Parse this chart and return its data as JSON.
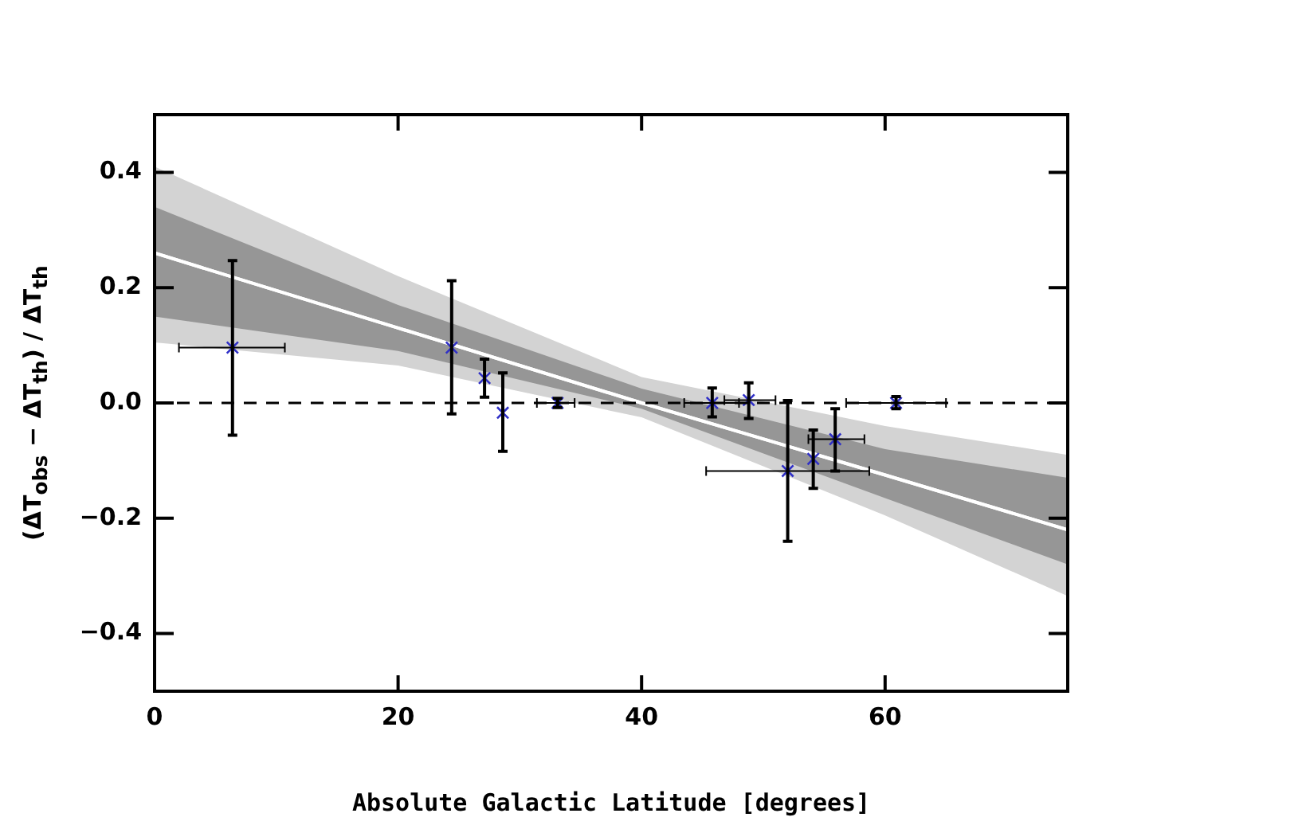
{
  "chart_data": {
    "type": "scatter",
    "xlabel": "Absolute Galactic Latitude [degrees]",
    "ylabel": "(ΔT$_{obs}$ − ΔT$_{th}$) / ΔT$_{th}$",
    "xlim": [
      0,
      75
    ],
    "xticks": [
      0,
      20,
      40,
      60
    ],
    "ylim": [
      -0.5,
      0.5
    ],
    "yticks": [
      {
        "value": -0.4,
        "label": "−0.4"
      },
      {
        "value": -0.2,
        "label": "−0.2"
      },
      {
        "value": 0,
        "label": "0.0"
      },
      0.2,
      0.4
    ],
    "grid": false,
    "legend": false,
    "marker": "cross",
    "ref_lines": [
      {
        "axis": "y",
        "value": 0,
        "color": "#000000",
        "line_style": "dashed"
      }
    ],
    "series": [
      {
        "type": "line",
        "color": "#ffffff",
        "marker": "none",
        "x": [
          0,
          20,
          40,
          60,
          75
        ],
        "values": [
          0.26,
          0.13,
          0.0,
          -0.125,
          -0.22
        ],
        "lower": [
          0.105,
          0.065,
          -0.025,
          -0.195,
          -0.335
        ],
        "upper": [
          0.41,
          0.22,
          0.045,
          -0.04,
          -0.09
        ]
      },
      {
        "type": "line",
        "color": "#ffffff",
        "marker": "none",
        "x": [
          0,
          20,
          40,
          60,
          75
        ],
        "values": [
          0.26,
          0.13,
          0.0,
          -0.125,
          -0.22
        ],
        "lower": [
          0.15,
          0.09,
          -0.01,
          -0.165,
          -0.28
        ],
        "upper": [
          0.34,
          0.17,
          0.025,
          -0.08,
          -0.13
        ]
      },
      {
        "color": "#3030c8",
        "x": [
          6.4,
          24.4,
          27.1,
          28.6,
          33.1,
          45.8,
          48.8,
          52.0,
          54.1,
          55.9,
          60.9
        ],
        "values": [
          0.096,
          0.096,
          0.043,
          -0.017,
          0.0,
          0.0,
          0.005,
          -0.118,
          -0.097,
          -0.063,
          0.0
        ],
        "errors": [
          [
            -0.056,
            0.247
          ],
          [
            -0.019,
            0.212
          ],
          [
            0.01,
            0.076
          ],
          [
            -0.084,
            0.052
          ],
          [
            -0.008,
            0.008
          ],
          [
            -0.024,
            0.026
          ],
          [
            -0.027,
            0.035
          ],
          [
            -0.24,
            0.004
          ],
          [
            -0.148,
            -0.047
          ],
          [
            -0.118,
            -0.01
          ],
          [
            -0.01,
            0.011
          ]
        ],
        "xerrors": [
          [
            2.0,
            10.7
          ],
          null,
          null,
          null,
          [
            31.4,
            34.5
          ],
          [
            43.5,
            48.0
          ],
          [
            46.8,
            51.0
          ],
          [
            45.3,
            58.7
          ],
          null,
          [
            53.7,
            58.3
          ],
          [
            56.8,
            65.0
          ]
        ]
      }
    ]
  }
}
